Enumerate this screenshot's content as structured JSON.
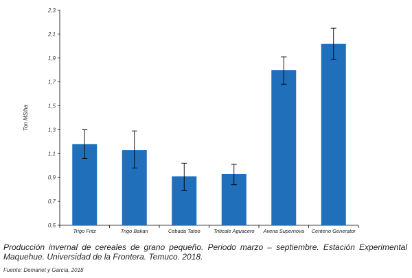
{
  "chart_data": {
    "type": "bar",
    "ylabel": "Ton MS/ha",
    "xlabel": "",
    "ylim": [
      0.5,
      2.3
    ],
    "yticks": [
      0.5,
      0.7,
      0.9,
      1.1,
      1.3,
      1.5,
      1.7,
      1.9,
      2.1,
      2.3
    ],
    "ytick_labels": [
      "0,5",
      "0,7",
      "0,9",
      "1,1",
      "1,3",
      "1,5",
      "1,7",
      "1,9",
      "2,1",
      "2,3"
    ],
    "categories": [
      "Trigo Fritz",
      "Trigo Bakan",
      "Cebada Tatoo",
      "Triticale Aguacero",
      "Avena Supernova",
      "Centeno Generator"
    ],
    "values": [
      1.18,
      1.13,
      0.91,
      0.93,
      1.8,
      2.02
    ],
    "error_low": [
      1.06,
      0.98,
      0.79,
      0.84,
      1.68,
      1.89
    ],
    "error_high": [
      1.3,
      1.29,
      1.02,
      1.01,
      1.91,
      2.15
    ],
    "bar_color": "#1f6fba",
    "grid": false
  },
  "caption": "Producción invernal de cereales de grano pequeño. Periodo marzo – septiembre. Estación Experimental Maquehue. Universidad de la Frontera. Temuco. 2018.",
  "source": "Fuente: Demanet y García, 2018"
}
